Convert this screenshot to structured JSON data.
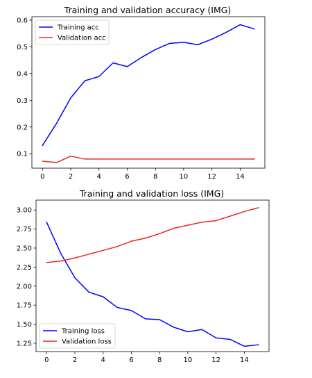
{
  "chart_data": [
    {
      "type": "line",
      "title": "Training and validation accuracy (IMG)",
      "xlabel": "",
      "ylabel": "",
      "x": [
        0,
        1,
        2,
        3,
        4,
        5,
        6,
        7,
        8,
        9,
        10,
        11,
        12,
        13,
        14,
        15
      ],
      "xlim": [
        -0.75,
        15.75
      ],
      "ylim": [
        0.046,
        0.613
      ],
      "xticks": [
        "0",
        "2",
        "4",
        "6",
        "8",
        "10",
        "12",
        "14"
      ],
      "yticks": [
        "0.1",
        "0.2",
        "0.3",
        "0.4",
        "0.5",
        "0.6"
      ],
      "grid": false,
      "legend_position": "top-left",
      "series": [
        {
          "name": "Training acc",
          "color": "#0000ff",
          "values": [
            0.131,
            0.214,
            0.309,
            0.373,
            0.389,
            0.44,
            0.426,
            0.46,
            0.49,
            0.513,
            0.517,
            0.508,
            0.529,
            0.554,
            0.583,
            0.567
          ]
        },
        {
          "name": "Validation acc",
          "color": "#e8271a",
          "values": [
            0.072,
            0.067,
            0.091,
            0.08,
            0.08,
            0.08,
            0.08,
            0.08,
            0.08,
            0.08,
            0.08,
            0.08,
            0.08,
            0.08,
            0.08,
            0.08
          ]
        }
      ]
    },
    {
      "type": "line",
      "title": "Training and validation loss (IMG)",
      "xlabel": "",
      "ylabel": "",
      "x": [
        0,
        1,
        2,
        3,
        4,
        5,
        6,
        7,
        8,
        9,
        10,
        11,
        12,
        13,
        14,
        15
      ],
      "xlim": [
        -0.75,
        15.75
      ],
      "ylim": [
        1.14,
        3.13
      ],
      "xticks": [
        "0",
        "2",
        "4",
        "6",
        "8",
        "10",
        "12",
        "14"
      ],
      "yticks": [
        "1.25",
        "1.50",
        "1.75",
        "2.00",
        "2.25",
        "2.50",
        "2.75",
        "3.00"
      ],
      "grid": false,
      "legend_position": "bottom-left",
      "series": [
        {
          "name": "Training loss",
          "color": "#0000ff",
          "values": [
            2.84,
            2.43,
            2.11,
            1.92,
            1.86,
            1.72,
            1.68,
            1.57,
            1.56,
            1.46,
            1.4,
            1.43,
            1.32,
            1.3,
            1.21,
            1.23
          ]
        },
        {
          "name": "Validation loss",
          "color": "#e8271a",
          "values": [
            2.31,
            2.33,
            2.37,
            2.42,
            2.47,
            2.52,
            2.59,
            2.63,
            2.69,
            2.76,
            2.8,
            2.84,
            2.86,
            2.92,
            2.98,
            3.03
          ]
        }
      ]
    }
  ]
}
